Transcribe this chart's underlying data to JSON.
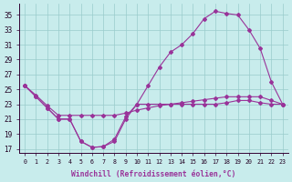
{
  "bg_color": "#c8ecec",
  "line_color": "#993399",
  "grid_color": "#99cccc",
  "xlabel": "Windchill (Refroidissement éolien,°C)",
  "xlim": [
    -0.5,
    23.5
  ],
  "ylim": [
    16.5,
    36.5
  ],
  "yticks": [
    17,
    19,
    21,
    23,
    25,
    27,
    29,
    31,
    33,
    35
  ],
  "xticks": [
    0,
    1,
    2,
    3,
    4,
    5,
    6,
    7,
    8,
    9,
    10,
    11,
    12,
    13,
    14,
    15,
    16,
    17,
    18,
    19,
    20,
    21,
    22,
    23
  ],
  "curve1_x": [
    0,
    1,
    2,
    3,
    4,
    5,
    6,
    7,
    8,
    9,
    10,
    11,
    12,
    13,
    14,
    15,
    16,
    17,
    18,
    19,
    20,
    21,
    22,
    23
  ],
  "curve1_y": [
    25.5,
    24.0,
    22.5,
    21.0,
    21.0,
    18.0,
    17.2,
    17.3,
    18.3,
    21.3,
    23.0,
    25.5,
    28.0,
    30.0,
    31.0,
    32.5,
    34.5,
    35.5,
    35.2,
    35.0,
    33.0,
    30.5,
    26.0,
    23.0
  ],
  "curve2_x": [
    0,
    1,
    2,
    3,
    4,
    5,
    6,
    7,
    8,
    9,
    10,
    11,
    12,
    13,
    14,
    15,
    16,
    17,
    18,
    19,
    20,
    21,
    22,
    23
  ],
  "curve2_y": [
    25.5,
    24.2,
    22.8,
    21.5,
    21.5,
    21.5,
    21.5,
    21.5,
    21.5,
    21.8,
    22.2,
    22.5,
    22.8,
    23.0,
    23.2,
    23.4,
    23.6,
    23.8,
    24.0,
    24.0,
    24.0,
    24.0,
    23.5,
    23.0
  ],
  "curve3_x": [
    0,
    1,
    2,
    3,
    4,
    5,
    6,
    7,
    8,
    9,
    10,
    11,
    12,
    13,
    14,
    15,
    16,
    17,
    18,
    19,
    20,
    21,
    22,
    23
  ],
  "curve3_y": [
    25.5,
    24.0,
    22.5,
    21.0,
    21.0,
    18.0,
    17.2,
    17.3,
    18.0,
    21.0,
    23.0,
    23.0,
    23.0,
    23.0,
    23.0,
    23.0,
    23.0,
    23.0,
    23.2,
    23.5,
    23.5,
    23.2,
    23.0,
    23.0
  ]
}
